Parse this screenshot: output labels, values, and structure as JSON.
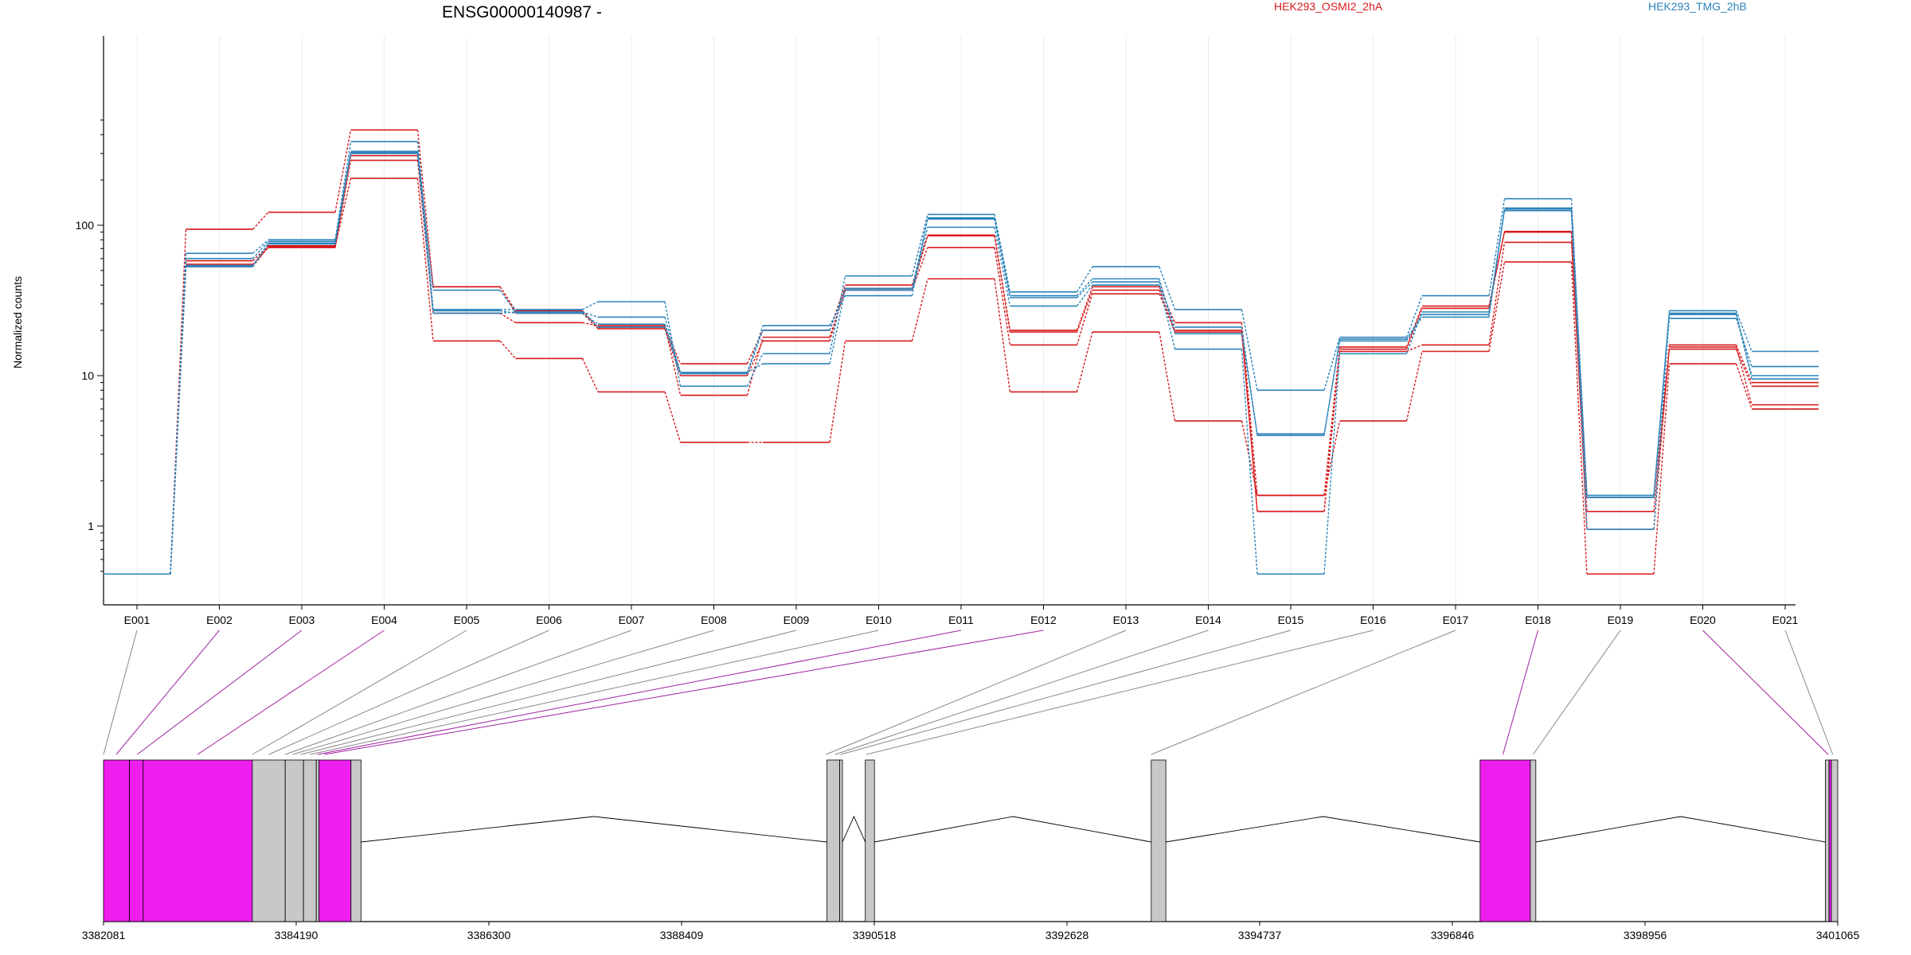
{
  "chart_data": {
    "type": "line",
    "title": "ENSG00000140987 -",
    "ylabel": "Normalized counts",
    "yscale": "log",
    "ylim": [
      0.5,
      500
    ],
    "ytick_labels": [
      "1",
      "10",
      "100"
    ],
    "grid": true,
    "legend": [
      {
        "label": "HEK293_OSMI2_2hA",
        "color": "#d7191c"
      },
      {
        "label": "HEK293_TMG_2hB",
        "color": "#2b83ba"
      }
    ],
    "categories": [
      "E001",
      "E002",
      "E003",
      "E004",
      "E005",
      "E006",
      "E007",
      "E008",
      "E009",
      "E010",
      "E011",
      "E012",
      "E013",
      "E014",
      "E015",
      "E016",
      "E017",
      "E018",
      "E019",
      "E020",
      "E021"
    ],
    "series": [
      {
        "group": "HEK293_OSMI2_2hA",
        "color": "#d7191c",
        "values": [
          0.48,
          94,
          122,
          430,
          39,
          27,
          21,
          12,
          20,
          40,
          86,
          20,
          39,
          22.5,
          1.6,
          15.5,
          29,
          91,
          1.55,
          15.5,
          6.4
        ]
      },
      {
        "group": "HEK293_OSMI2_2hA",
        "color": "#d7191c",
        "values": [
          0.48,
          55,
          71,
          270,
          26,
          22.5,
          21.5,
          7.4,
          18,
          37,
          71,
          16,
          35,
          19.5,
          1.25,
          14.5,
          16,
          77,
          1.25,
          15,
          8.5
        ]
      },
      {
        "group": "HEK293_OSMI2_2hA",
        "color": "#d7191c",
        "values": [
          0.48,
          53,
          72,
          205,
          17,
          13,
          7.8,
          3.6,
          3.6,
          17,
          44,
          7.8,
          19.5,
          5,
          1.6,
          5,
          14.5,
          57,
          0.48,
          12,
          6
        ]
      },
      {
        "group": "HEK293_OSMI2_2hA",
        "color": "#d7191c",
        "values": [
          0.48,
          58,
          73,
          290,
          39,
          26,
          20.5,
          10,
          17,
          38,
          85,
          19.5,
          37,
          20,
          1.25,
          15,
          28,
          90,
          0.95,
          16,
          9
        ]
      },
      {
        "group": "HEK293_TMG_2hB",
        "color": "#2b83ba",
        "values": [
          0.48,
          65,
          80,
          360,
          27.5,
          27.5,
          31,
          8.5,
          14,
          46,
          118,
          36,
          53,
          27.5,
          8,
          18,
          34,
          150,
          1.6,
          27,
          14.5
        ]
      },
      {
        "group": "HEK293_TMG_2hB",
        "color": "#2b83ba",
        "values": [
          0.48,
          60,
          78,
          310,
          37,
          26.5,
          24.5,
          10.5,
          21.5,
          34,
          112,
          34,
          44,
          19,
          4.1,
          17,
          24.5,
          128,
          1.55,
          24,
          11.5
        ]
      },
      {
        "group": "HEK293_TMG_2hB",
        "color": "#2b83ba",
        "values": [
          0.48,
          53,
          76,
          300,
          26,
          26.5,
          21,
          10.5,
          12,
          37,
          97,
          29,
          40,
          15,
          0.48,
          14,
          26.5,
          125,
          0.95,
          25.5,
          9.5
        ]
      },
      {
        "group": "HEK293_TMG_2hB",
        "color": "#2b83ba",
        "values": [
          0.48,
          54,
          75,
          305,
          27,
          26,
          22,
          10.3,
          20,
          38,
          110,
          33,
          42,
          21,
          4,
          17.5,
          25.5,
          130,
          1.55,
          26,
          10
        ]
      }
    ],
    "gene_model": {
      "coordinate_labels": [
        "3382081",
        "3384190",
        "3386300",
        "3388409",
        "3390518",
        "3392628",
        "3394737",
        "3396846",
        "3398956",
        "3401065"
      ],
      "coordinate_range": [
        3382081,
        3401065
      ],
      "exon_colors": {
        "highlighted": "#ee1fee",
        "normal": "#c8c8c8"
      },
      "exons": [
        {
          "id": "E001",
          "start": 3382081,
          "end": 3382365,
          "highlighted": true
        },
        {
          "id": "E002",
          "start": 3382365,
          "end": 3382515,
          "highlighted": true
        },
        {
          "id": "E003",
          "start": 3382515,
          "end": 3383710,
          "highlighted": true
        },
        {
          "id": "E004",
          "start": 3383710,
          "end": 3384070,
          "highlighted": false
        },
        {
          "id": "E005",
          "start": 3384070,
          "end": 3384270,
          "highlighted": false
        },
        {
          "id": "E006",
          "start": 3384270,
          "end": 3384410,
          "highlighted": false
        },
        {
          "id": "E007",
          "start": 3384410,
          "end": 3384440,
          "highlighted": false
        },
        {
          "id": "E008",
          "start": 3384440,
          "end": 3384790,
          "highlighted": true
        },
        {
          "id": "E009",
          "start": 3384790,
          "end": 3384900,
          "highlighted": false
        },
        {
          "id": "E010",
          "start": 3390000,
          "end": 3390140,
          "highlighted": false
        },
        {
          "id": "E011",
          "start": 3390140,
          "end": 3390170,
          "highlighted": false
        },
        {
          "id": "E012",
          "start": 3390420,
          "end": 3390520,
          "highlighted": false
        },
        {
          "id": "E013",
          "start": 3393550,
          "end": 3393710,
          "highlighted": false
        },
        {
          "id": "E014",
          "start": 3397150,
          "end": 3397700,
          "highlighted": true
        },
        {
          "id": "E015",
          "start": 3397700,
          "end": 3397760,
          "highlighted": false
        },
        {
          "id": "E016",
          "start": 3400930,
          "end": 3400970,
          "highlighted": false
        },
        {
          "id": "E017",
          "start": 3400970,
          "end": 3400995,
          "highlighted": true
        },
        {
          "id": "E018",
          "start": 3400995,
          "end": 3401065,
          "highlighted": false
        }
      ],
      "introns": [
        {
          "start": 3384900,
          "end": 3390000
        },
        {
          "start": 3390170,
          "end": 3390420
        },
        {
          "start": 3390520,
          "end": 3393550
        },
        {
          "start": 3393710,
          "end": 3397150
        },
        {
          "start": 3397760,
          "end": 3400930
        }
      ],
      "connectors": [
        {
          "bin": "E001",
          "target": 3382081,
          "highlighted": false
        },
        {
          "bin": "E002",
          "target": 3382220,
          "highlighted": true
        },
        {
          "bin": "E003",
          "target": 3382450,
          "highlighted": true
        },
        {
          "bin": "E004",
          "target": 3383110,
          "highlighted": true
        },
        {
          "bin": "E005",
          "target": 3383710,
          "highlighted": false
        },
        {
          "bin": "E006",
          "target": 3383890,
          "highlighted": false
        },
        {
          "bin": "E007",
          "target": 3384070,
          "highlighted": false
        },
        {
          "bin": "E008",
          "target": 3384150,
          "highlighted": false
        },
        {
          "bin": "E009",
          "target": 3384240,
          "highlighted": false
        },
        {
          "bin": "E010",
          "target": 3384340,
          "highlighted": false
        },
        {
          "bin": "E011",
          "target": 3384425,
          "highlighted": true
        },
        {
          "bin": "E012",
          "target": 3384500,
          "highlighted": true
        },
        {
          "bin": "E013",
          "target": 3389990,
          "highlighted": false
        },
        {
          "bin": "E014",
          "target": 3390090,
          "highlighted": false
        },
        {
          "bin": "E015",
          "target": 3390150,
          "highlighted": false
        },
        {
          "bin": "E016",
          "target": 3390430,
          "highlighted": false
        },
        {
          "bin": "E017",
          "target": 3393550,
          "highlighted": false
        },
        {
          "bin": "E018",
          "target": 3397400,
          "highlighted": true
        },
        {
          "bin": "E019",
          "target": 3397730,
          "highlighted": false
        },
        {
          "bin": "E020",
          "target": 3400960,
          "highlighted": true
        },
        {
          "bin": "E021",
          "target": 3401010,
          "highlighted": false
        }
      ]
    }
  }
}
